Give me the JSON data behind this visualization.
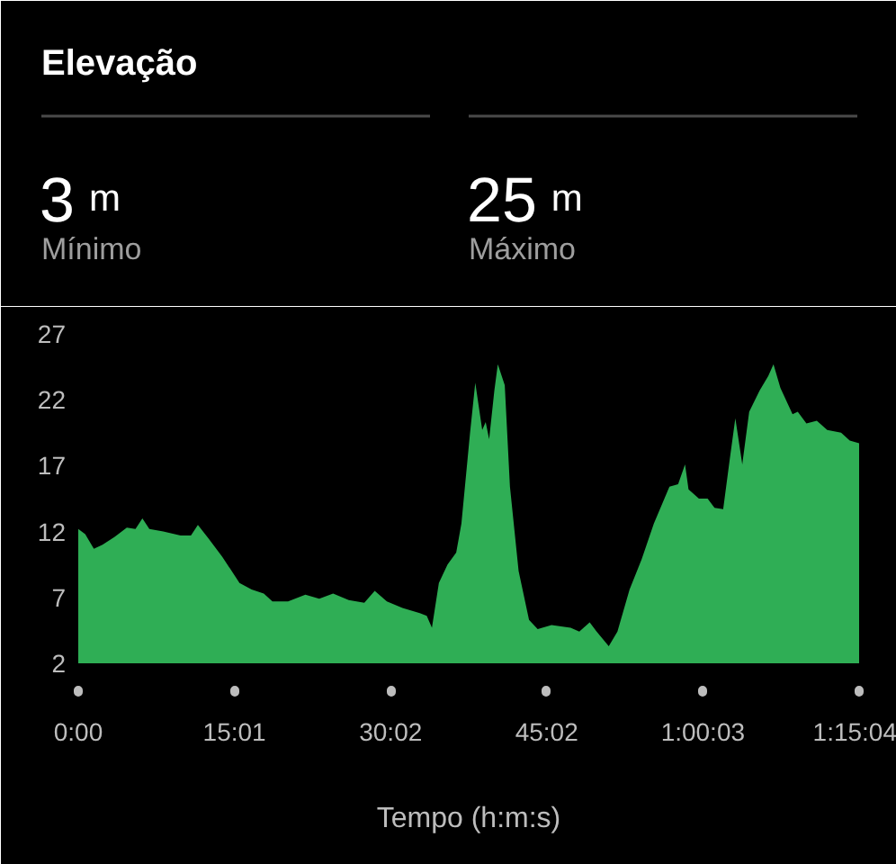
{
  "chart_data": {
    "type": "area",
    "title": "Elevação",
    "annotations": [
      "3 m",
      "Mínimo",
      "25 m",
      "Máximo"
    ],
    "xlabel": "Tempo (h:m:s)",
    "color": "#2fae55",
    "x": [
      0,
      40,
      90,
      140,
      210,
      280,
      330,
      370,
      410,
      490,
      590,
      650,
      690,
      750,
      830,
      930,
      1000,
      1070,
      1120,
      1210,
      1310,
      1390,
      1470,
      1560,
      1650,
      1710,
      1780,
      1870,
      1970,
      2010,
      2040,
      2080,
      2130,
      2180,
      2210,
      2260,
      2290,
      2330,
      2350,
      2370,
      2400,
      2420,
      2460,
      2490,
      2540,
      2600,
      2650,
      2730,
      2840,
      2890,
      2950,
      2990,
      3060,
      3110,
      3180,
      3250,
      3320,
      3410,
      3460,
      3500,
      3520,
      3580,
      3630,
      3670,
      3720,
      3760,
      3790,
      3830,
      3870,
      3930,
      3980,
      4010,
      4050,
      4120,
      4150,
      4200,
      4260,
      4320,
      4400,
      4450,
      4504
    ],
    "values": [
      12.2,
      11.8,
      10.7,
      11.0,
      11.6,
      12.3,
      12.2,
      13.0,
      12.2,
      12.0,
      11.7,
      11.7,
      12.5,
      11.5,
      10.1,
      8.1,
      7.6,
      7.3,
      6.7,
      6.7,
      7.2,
      6.9,
      7.3,
      6.8,
      6.6,
      7.5,
      6.7,
      6.2,
      5.8,
      5.6,
      4.7,
      8.1,
      9.5,
      10.4,
      12.6,
      19.5,
      23.3,
      19.7,
      20.3,
      19.0,
      22.7,
      24.7,
      23.1,
      15.4,
      9.0,
      5.3,
      4.6,
      4.9,
      4.7,
      4.4,
      5.1,
      4.4,
      3.3,
      4.4,
      7.6,
      9.9,
      12.6,
      15.4,
      15.6,
      17.1,
      15.2,
      14.5,
      14.5,
      13.8,
      13.7,
      17.7,
      20.6,
      17.1,
      21.1,
      22.7,
      23.8,
      24.7,
      22.9,
      20.9,
      21.1,
      20.2,
      20.4,
      19.7,
      19.5,
      18.9,
      18.7
    ],
    "xlim": [
      0,
      4504
    ],
    "ylim": [
      2,
      27
    ],
    "xticks": [
      {
        "value": 0,
        "label": "0:00"
      },
      {
        "value": 901,
        "label": "15:01"
      },
      {
        "value": 1802,
        "label": "30:02"
      },
      {
        "value": 2702,
        "label": "45:02"
      },
      {
        "value": 3603,
        "label": "1:00:03"
      },
      {
        "value": 4504,
        "label": "1:15:04"
      }
    ],
    "yticks": [
      2,
      7,
      12,
      17,
      22,
      27
    ]
  }
}
